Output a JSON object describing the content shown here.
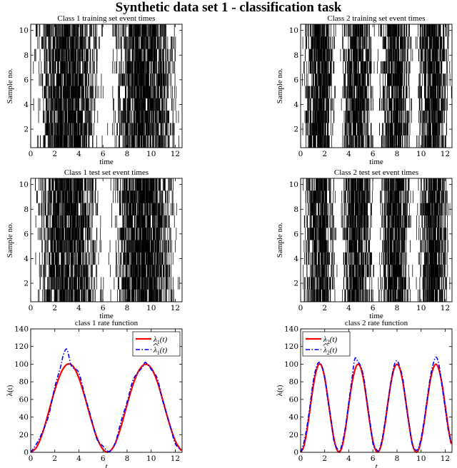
{
  "figure_title": "Synthetic data set 1 - classification task",
  "colors": {
    "true_rate": "#ff0000",
    "estimated_rate": "#0000ff",
    "events": "#000000"
  },
  "chart_data": [
    {
      "id": "c1-train",
      "type": "scatter",
      "mark": "event-raster",
      "title": "Class 1 training set event times",
      "xlabel": "time",
      "ylabel": "Sample no.",
      "xlim": [
        0,
        12.566
      ],
      "ylim": [
        0.5,
        10.5
      ],
      "xticks": [
        0,
        2,
        4,
        6,
        8,
        10,
        12
      ],
      "yticks": [
        2,
        4,
        6,
        8,
        10
      ],
      "rows": 10,
      "seed": 11,
      "rate_cycles": 1,
      "events_per_row_approx": 310
    },
    {
      "id": "c2-train",
      "type": "scatter",
      "mark": "event-raster",
      "title": "Class 2 training set event times",
      "xlabel": "time",
      "ylabel": "Sample no.",
      "xlim": [
        0,
        12.566
      ],
      "ylim": [
        0.5,
        10.5
      ],
      "xticks": [
        0,
        2,
        4,
        6,
        8,
        10,
        12
      ],
      "yticks": [
        2,
        4,
        6,
        8,
        10
      ],
      "rows": 10,
      "seed": 23,
      "rate_cycles": 2,
      "events_per_row_approx": 310
    },
    {
      "id": "c1-test",
      "type": "scatter",
      "mark": "event-raster",
      "title": "Class 1 test set event times",
      "xlabel": "time",
      "ylabel": "Sample no.",
      "xlim": [
        0,
        12.566
      ],
      "ylim": [
        0.5,
        10.5
      ],
      "xticks": [
        0,
        2,
        4,
        6,
        8,
        10,
        12
      ],
      "yticks": [
        2,
        4,
        6,
        8,
        10
      ],
      "rows": 10,
      "seed": 37,
      "rate_cycles": 1,
      "events_per_row_approx": 310
    },
    {
      "id": "c2-test",
      "type": "scatter",
      "mark": "event-raster",
      "title": "Class 2 test set event times",
      "xlabel": "time",
      "ylabel": "Sample no.",
      "xlim": [
        0,
        12.566
      ],
      "ylim": [
        0.5,
        10.5
      ],
      "xticks": [
        0,
        2,
        4,
        6,
        8,
        10,
        12
      ],
      "yticks": [
        2,
        4,
        6,
        8,
        10
      ],
      "rows": 10,
      "seed": 53,
      "rate_cycles": 2,
      "events_per_row_approx": 310
    },
    {
      "id": "c1-rate",
      "type": "line",
      "title": "class 1 rate function",
      "xlabel": "t",
      "ylabel": "λ(t)",
      "xlim": [
        0,
        12.566
      ],
      "ylim": [
        0,
        140
      ],
      "xticks": [
        0,
        2,
        4,
        6,
        8,
        10,
        12
      ],
      "yticks": [
        0,
        20,
        40,
        60,
        80,
        100,
        120,
        140
      ],
      "legend_position": "top-right",
      "series": [
        {
          "name": "λ1(t)",
          "label": {
            "sym": "λ",
            "sub": "1",
            "rest": "(t)",
            "hat": false
          },
          "style": "solid",
          "color": "#ff0000",
          "x": [
            0.0,
            0.5,
            1.0,
            1.5,
            2.0,
            2.5,
            3.0,
            3.5,
            4.0,
            4.5,
            5.0,
            5.5,
            6.0,
            6.5,
            7.0,
            7.5,
            8.0,
            8.5,
            9.0,
            9.5,
            10.0,
            10.5,
            11.0,
            11.5,
            12.0,
            12.5
          ],
          "y": [
            0.0,
            6.0,
            22.6,
            46.2,
            70.6,
            89.8,
            99.7,
            97.7,
            84.3,
            62.4,
            37.9,
            16.5,
            3.4,
            0.6,
            9.6,
            29.4,
            54.2,
            77.2,
            93.2,
            99.9,
            95.6,
            80.4,
            57.4,
            32.9,
            12.9,
            1.9
          ]
        },
        {
          "name": "λ̂1(t)",
          "label": {
            "sym": "λ",
            "sub": "1",
            "rest": "(t)",
            "hat": true
          },
          "style": "dashdot",
          "color": "#0000ff",
          "x": [
            0.0,
            0.5,
            1.0,
            1.5,
            2.0,
            2.5,
            2.7,
            3.0,
            3.3,
            3.5,
            4.0,
            4.5,
            5.0,
            5.5,
            6.0,
            6.5,
            7.0,
            7.5,
            8.0,
            8.5,
            9.0,
            9.3,
            9.5,
            9.8,
            10.0,
            10.5,
            11.0,
            11.5,
            12.0,
            12.5
          ],
          "y": [
            0.0,
            10.0,
            24.0,
            42.0,
            74.0,
            98.0,
            110.0,
            117.0,
            101.0,
            96.0,
            90.0,
            64.0,
            40.0,
            15.0,
            7.0,
            1.0,
            10.0,
            35.0,
            57.0,
            82.0,
            92.0,
            97.0,
            102.0,
            98.0,
            94.0,
            84.0,
            56.0,
            34.0,
            10.0,
            3.0
          ]
        }
      ]
    },
    {
      "id": "c2-rate",
      "type": "line",
      "title": "class 2 rate function",
      "xlabel": "t",
      "ylabel": "λ(t)",
      "xlim": [
        0,
        12.566
      ],
      "ylim": [
        0,
        140
      ],
      "xticks": [
        0,
        2,
        4,
        6,
        8,
        10,
        12
      ],
      "yticks": [
        0,
        20,
        40,
        60,
        80,
        100,
        120,
        140
      ],
      "legend_position": "top-left",
      "series": [
        {
          "name": "λ2(t)",
          "label": {
            "sym": "λ",
            "sub": "2",
            "rest": "(t)",
            "hat": false
          },
          "style": "solid",
          "color": "#ff0000",
          "x": [
            0.0,
            0.25,
            0.5,
            0.75,
            1.0,
            1.25,
            1.5,
            1.75,
            2.0,
            2.25,
            2.5,
            2.75,
            3.0,
            3.25,
            3.5,
            3.75,
            4.0,
            4.25,
            4.5,
            4.75,
            5.0,
            5.25,
            5.5,
            5.75,
            6.0,
            6.25,
            6.5,
            6.75,
            7.0,
            7.25,
            7.5,
            7.75,
            8.0,
            8.25,
            8.5,
            8.75,
            9.0,
            9.25,
            9.5,
            9.75,
            10.0,
            10.25,
            10.5,
            10.75,
            11.0,
            11.25,
            11.5,
            11.75,
            12.0,
            12.25,
            12.5
          ],
          "y": [
            0.0,
            6.0,
            22.6,
            46.2,
            70.6,
            89.8,
            99.7,
            97.7,
            84.3,
            62.4,
            37.9,
            16.5,
            3.4,
            0.6,
            9.6,
            29.4,
            54.2,
            77.2,
            93.2,
            99.9,
            95.6,
            80.4,
            57.4,
            32.9,
            12.9,
            1.9,
            1.4,
            11.5,
            32.0,
            56.4,
            79.0,
            94.4,
            99.9,
            94.2,
            78.6,
            55.9,
            31.5,
            11.1,
            1.2,
            1.9,
            13.4,
            33.6,
            57.9,
            80.6,
            95.1,
            99.9,
            92.9,
            76.2,
            52.7,
            28.5,
            9.4
          ]
        },
        {
          "name": "λ̂2(t)",
          "label": {
            "sym": "λ",
            "sub": "2",
            "rest": "(t)",
            "hat": true
          },
          "style": "dashdot",
          "color": "#0000ff",
          "x": [
            0.0,
            0.25,
            0.5,
            0.75,
            1.0,
            1.25,
            1.5,
            1.75,
            2.0,
            2.25,
            2.5,
            2.75,
            3.0,
            3.25,
            3.5,
            3.75,
            4.0,
            4.25,
            4.5,
            4.75,
            5.0,
            5.25,
            5.5,
            5.75,
            6.0,
            6.25,
            6.5,
            6.75,
            7.0,
            7.25,
            7.5,
            7.75,
            8.0,
            8.25,
            8.5,
            8.75,
            9.0,
            9.25,
            9.5,
            9.75,
            10.0,
            10.25,
            10.5,
            10.75,
            11.0,
            11.25,
            11.5,
            11.75,
            12.0,
            12.25,
            12.5
          ],
          "y": [
            0.0,
            10.0,
            27.0,
            50.0,
            76.0,
            94.0,
            102.0,
            98.0,
            86.0,
            60.0,
            40.0,
            14.0,
            5.0,
            2.0,
            13.0,
            31.0,
            57.0,
            82.0,
            106.0,
            103.0,
            97.0,
            84.0,
            59.0,
            36.0,
            10.0,
            4.0,
            2.0,
            14.0,
            34.0,
            57.0,
            80.0,
            98.0,
            104.0,
            96.0,
            82.0,
            54.0,
            33.0,
            10.0,
            3.0,
            4.0,
            16.0,
            36.0,
            60.0,
            84.0,
            100.0,
            108.0,
            98.0,
            74.0,
            50.0,
            26.0,
            10.0
          ]
        }
      ]
    }
  ]
}
